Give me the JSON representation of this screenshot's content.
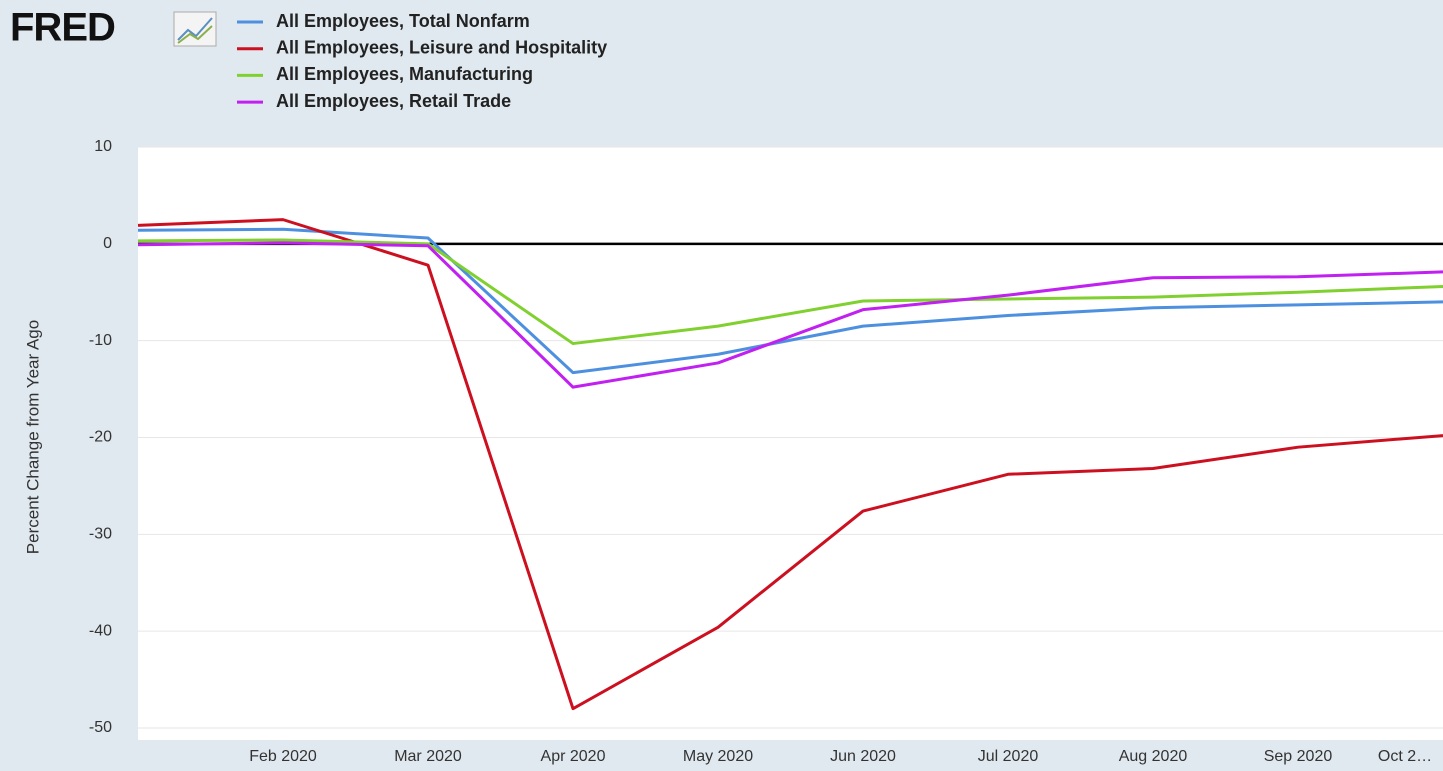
{
  "logo": "FRED",
  "chart_data": {
    "type": "line",
    "ylabel": "Percent Change from Year Ago",
    "categories": [
      null,
      "Feb 2020",
      "Mar 2020",
      "Apr 2020",
      "May 2020",
      "Jun 2020",
      "Jul 2020",
      "Aug 2020",
      "Sep 2020",
      "Oct 2…"
    ],
    "series": [
      {
        "name": "All Employees, Total Nonfarm",
        "color": "#4e90e0",
        "values": [
          1.4,
          1.5,
          0.6,
          -13.3,
          -11.4,
          -8.5,
          -7.4,
          -6.6,
          -6.3,
          -6.0
        ]
      },
      {
        "name": "All Employees, Leisure and Hospitality",
        "color": "#cc1020",
        "values": [
          1.9,
          2.5,
          -2.2,
          -48.0,
          -39.6,
          -27.6,
          -23.8,
          -23.2,
          -21.0,
          -19.8
        ]
      },
      {
        "name": "All Employees, Manufacturing",
        "color": "#80d030",
        "values": [
          0.3,
          0.4,
          0,
          -10.3,
          -8.5,
          -5.9,
          -5.7,
          -5.5,
          -5.0,
          -4.4
        ]
      },
      {
        "name": "All Employees, Retail Trade",
        "color": "#c020f0",
        "values": [
          -0.1,
          0.1,
          -0.2,
          -14.8,
          -12.3,
          -6.8,
          -5.3,
          -3.5,
          -3.4,
          -2.9
        ]
      }
    ],
    "ylim": [
      -50,
      10
    ],
    "yticks": [
      10,
      0,
      -10,
      -20,
      -30,
      -40,
      -50
    ],
    "grid": true,
    "zero_line": 0
  }
}
